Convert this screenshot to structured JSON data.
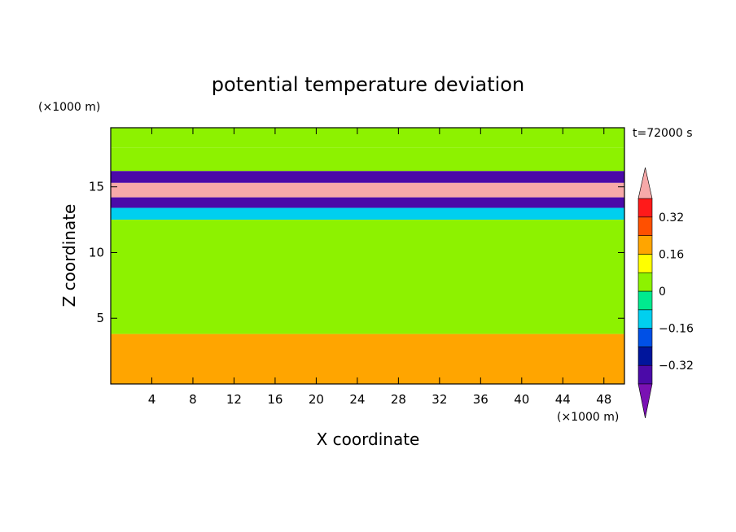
{
  "chart_data": {
    "type": "heatmap",
    "title": "potential temperature deviation",
    "xlabel": "X coordinate",
    "ylabel": "Z coordinate",
    "x_unit": "(×1000 m)",
    "y_unit": "(×1000 m)",
    "time_label": "t=72000 s",
    "xlim": [
      0,
      50
    ],
    "ylim": [
      0,
      19.5
    ],
    "x_ticks": [
      4,
      8,
      12,
      16,
      20,
      24,
      28,
      32,
      36,
      40,
      44,
      48
    ],
    "y_ticks": [
      5,
      10,
      15
    ],
    "colorbar": {
      "levels": [
        -0.48,
        -0.4,
        -0.32,
        -0.24,
        -0.16,
        -0.08,
        0,
        0.08,
        0.16,
        0.24,
        0.32,
        0.4
      ],
      "colors": [
        "#7a11b3",
        "#4b0aa8",
        "#00159c",
        "#0050e6",
        "#00cfef",
        "#00ea8f",
        "#8df200",
        "#ffff00",
        "#ffa500",
        "#ff5000",
        "#ff1a1a",
        "#f7a9a9"
      ],
      "tick_labels": [
        "−0.32",
        "−0.16",
        "0",
        "0.16",
        "0.32"
      ],
      "tick_values": [
        -0.32,
        -0.16,
        0,
        0.16,
        0.32
      ],
      "extend": "both"
    },
    "bands": [
      {
        "z": [
          18.0,
          19.5
        ],
        "value": 0.02
      },
      {
        "z": [
          16.2,
          18.0
        ],
        "value": 0.05
      },
      {
        "z": [
          15.3,
          16.2
        ],
        "value": -0.4
      },
      {
        "z": [
          14.2,
          15.3
        ],
        "value": 0.42
      },
      {
        "z": [
          13.4,
          14.2
        ],
        "value": -0.36
      },
      {
        "z": [
          12.5,
          13.4
        ],
        "value": -0.1
      },
      {
        "z": [
          3.8,
          12.5
        ],
        "value": 0.02
      },
      {
        "z": [
          0,
          3.8
        ],
        "value": 0.2
      }
    ]
  }
}
